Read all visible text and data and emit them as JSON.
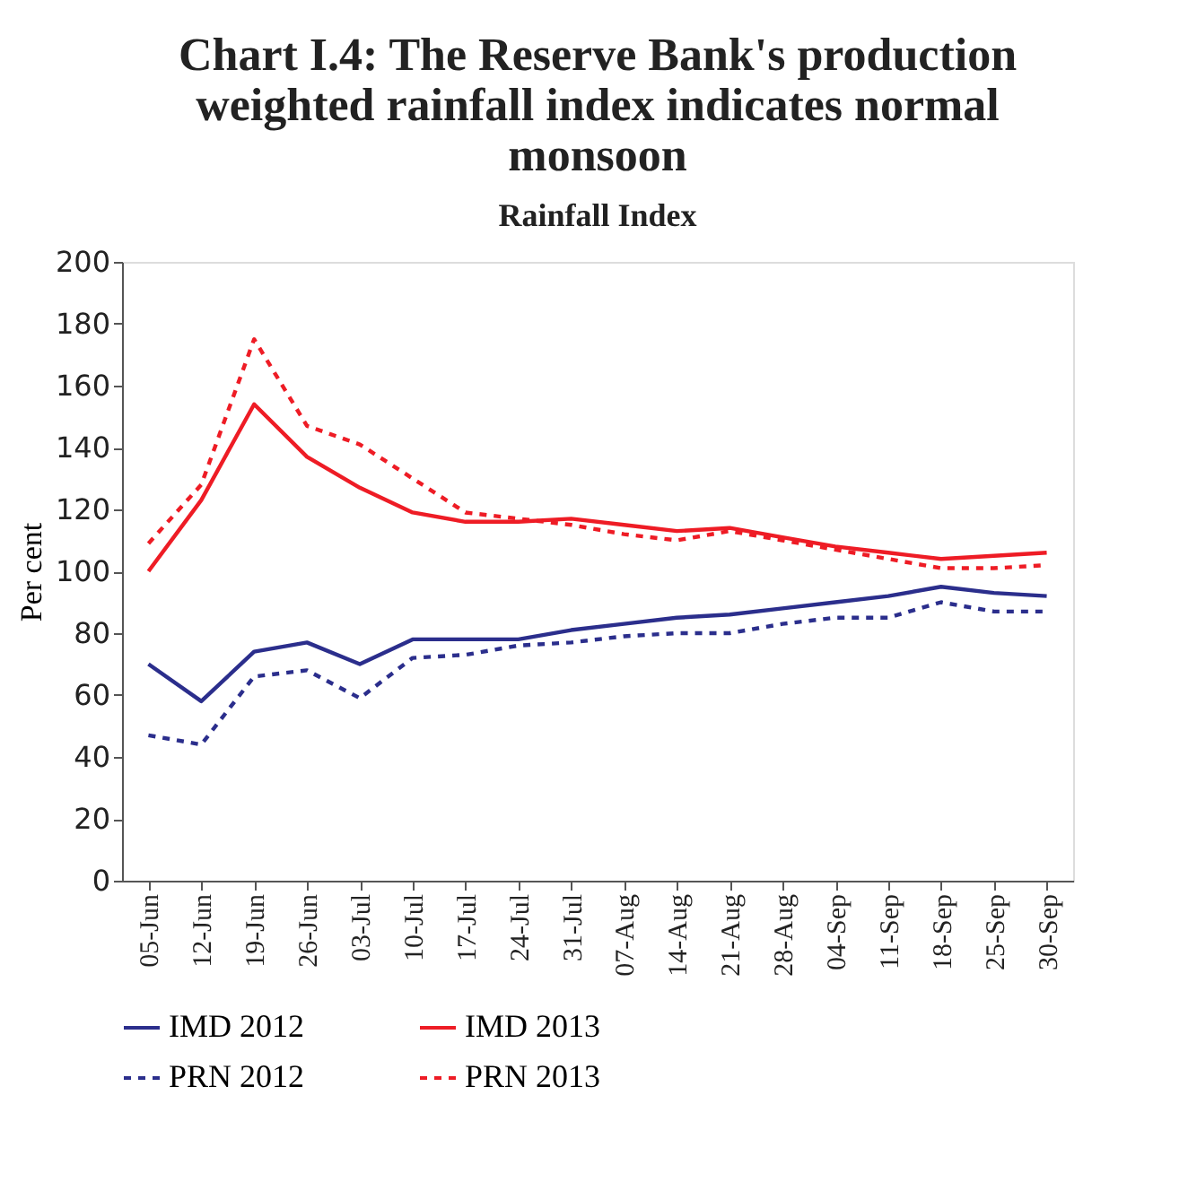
{
  "chart_data": {
    "type": "line",
    "title": "Chart I.4: The Reserve Bank's production weighted rainfall index indicates normal monsoon",
    "subtitle": "Rainfall Index",
    "ylabel": "Per cent",
    "categories": [
      "05-Jun",
      "12-Jun",
      "19-Jun",
      "26-Jun",
      "03-Jul",
      "10-Jul",
      "17-Jul",
      "24-Jul",
      "31-Jul",
      "07-Aug",
      "14-Aug",
      "21-Aug",
      "28-Aug",
      "04-Sep",
      "11-Sep",
      "18-Sep",
      "25-Sep",
      "30-Sep"
    ],
    "series": [
      {
        "name": "IMD 2012",
        "color": "#2b2e8c",
        "line_style": "solid",
        "values": [
          70,
          58,
          74,
          77,
          70,
          78,
          78,
          78,
          81,
          83,
          85,
          86,
          88,
          90,
          92,
          95,
          93,
          92
        ]
      },
      {
        "name": "IMD 2013",
        "color": "#ee1c25",
        "line_style": "solid",
        "values": [
          100,
          123,
          154,
          137,
          127,
          119,
          116,
          116,
          117,
          115,
          113,
          114,
          111,
          108,
          106,
          104,
          105,
          106
        ]
      },
      {
        "name": "PRN 2012",
        "color": "#2b2e8c",
        "line_style": "dashed",
        "values": [
          47,
          44,
          66,
          68,
          59,
          72,
          73,
          76,
          77,
          79,
          80,
          80,
          83,
          85,
          85,
          90,
          87,
          87
        ]
      },
      {
        "name": "PRN 2013",
        "color": "#ee1c25",
        "line_style": "dashed",
        "values": [
          109,
          128,
          175,
          147,
          141,
          130,
          119,
          117,
          115,
          112,
          110,
          113,
          110,
          107,
          104,
          101,
          101,
          102
        ]
      }
    ],
    "ylim": [
      0,
      200
    ],
    "yticks": [
      0,
      20,
      40,
      60,
      80,
      100,
      120,
      140,
      160,
      180,
      200
    ],
    "grid": false,
    "legend": "bottom",
    "marker": "none"
  }
}
